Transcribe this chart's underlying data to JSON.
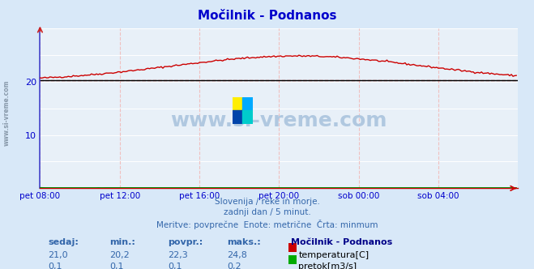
{
  "title": "Močilnik - Podnanos",
  "bg_color": "#d8e8f8",
  "plot_bg_color": "#e8f0f8",
  "grid_color_h": "#ffffff",
  "grid_color_v": "#f0c0c0",
  "spine_color": "#4444cc",
  "title_color": "#0000cc",
  "axis_label_color": "#0000cc",
  "text_color": "#3366aa",
  "xlim": [
    0,
    288
  ],
  "ylim": [
    0,
    30
  ],
  "yticks": [
    10,
    20
  ],
  "xtick_labels": [
    "pet 08:00",
    "pet 12:00",
    "pet 16:00",
    "pet 20:00",
    "sob 00:00",
    "sob 04:00"
  ],
  "xtick_positions": [
    0,
    48,
    96,
    144,
    192,
    240
  ],
  "subtitle_lines": [
    "Slovenija / reke in morje.",
    "zadnji dan / 5 minut.",
    "Meritve: povprečne  Enote: metrične  Črta: minmum"
  ],
  "table_headers": [
    "sedaj:",
    "min.:",
    "povpr.:",
    "maks.:"
  ],
  "table_station": "Močilnik - Podnanos",
  "table_rows": [
    {
      "values": [
        "21,0",
        "20,2",
        "22,3",
        "24,8"
      ],
      "label": "temperatura[C]",
      "color": "#cc0000"
    },
    {
      "values": [
        "0,1",
        "0,1",
        "0,1",
        "0,2"
      ],
      "label": "pretok[m3/s]",
      "color": "#00aa00"
    }
  ],
  "watermark": "www.si-vreme.com",
  "watermark_color": "#b0c8e0",
  "temp_color": "#cc0000",
  "flow_color": "#008800",
  "dashed_line_value": 20.2,
  "dashed_line_color": "#cc0000",
  "solid_line_value": 20.2,
  "solid_line_color": "#000000",
  "n_points": 288,
  "icon_colors": [
    "#ffee00",
    "#00aaff",
    "#0044aa",
    "#00cccc"
  ],
  "left_spine_color": "#4444cc",
  "bottom_spine_color": "#cc0000",
  "arrow_color": "#cc0000"
}
